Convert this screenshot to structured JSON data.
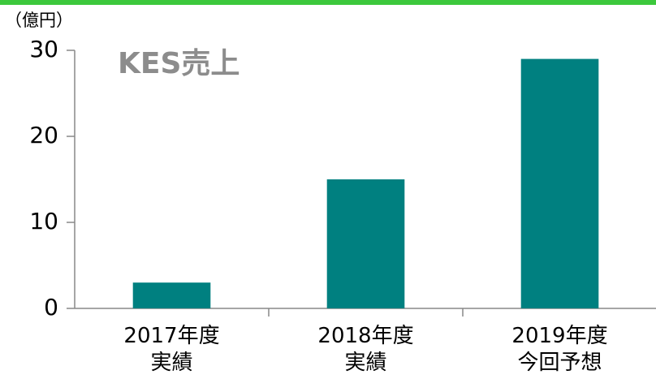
{
  "chart_data": {
    "type": "bar",
    "title": "KES売上",
    "unit_label": "（億円）",
    "categories": [
      "2017年度\n実績",
      "2018年度\n実績",
      "2019年度\n今回予想"
    ],
    "values": [
      3,
      15,
      29
    ],
    "color": "#008080",
    "ylim": [
      0,
      30
    ],
    "yticks": [
      0,
      10,
      20,
      30
    ],
    "grid": false
  }
}
